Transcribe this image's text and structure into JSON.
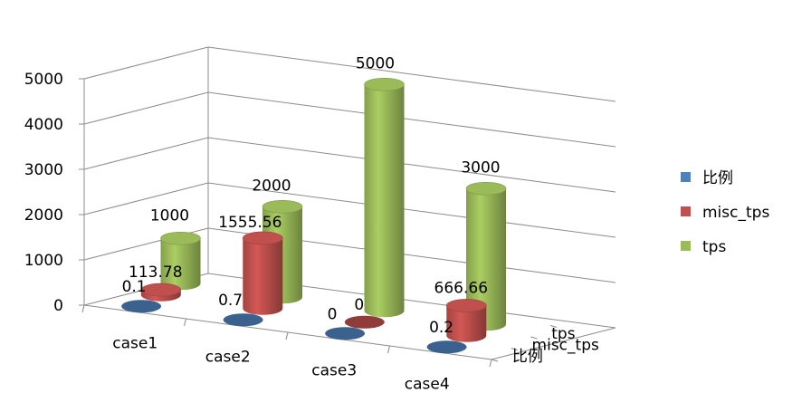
{
  "chart_data": {
    "type": "bar",
    "subtype": "3d-cylinder",
    "categories": [
      "case1",
      "case2",
      "case3",
      "case4"
    ],
    "series": [
      {
        "name": "比例",
        "values": [
          0.1,
          0.7,
          0,
          0.2
        ],
        "labels": [
          "0.1",
          "0.7",
          "0",
          "0.2"
        ],
        "color": "#4f81bd"
      },
      {
        "name": "misc_tps",
        "values": [
          113.78,
          1555.56,
          0,
          666.66
        ],
        "labels": [
          "113.78",
          "1555.56",
          "0",
          "666.66"
        ],
        "color": "#c0504d"
      },
      {
        "name": "tps",
        "values": [
          1000,
          2000,
          5000,
          3000
        ],
        "labels": [
          "1000",
          "2000",
          "5000",
          "3000"
        ],
        "color": "#9bbb59"
      }
    ],
    "yticks": [
      "0",
      "1000",
      "2000",
      "3000",
      "4000",
      "5000"
    ],
    "ylim": [
      0,
      5000
    ],
    "depth_axis_labels": [
      "tps",
      "misc_tps",
      "比例"
    ],
    "grid": true,
    "legend_position": "right",
    "title": "",
    "xlabel": "",
    "ylabel": ""
  }
}
